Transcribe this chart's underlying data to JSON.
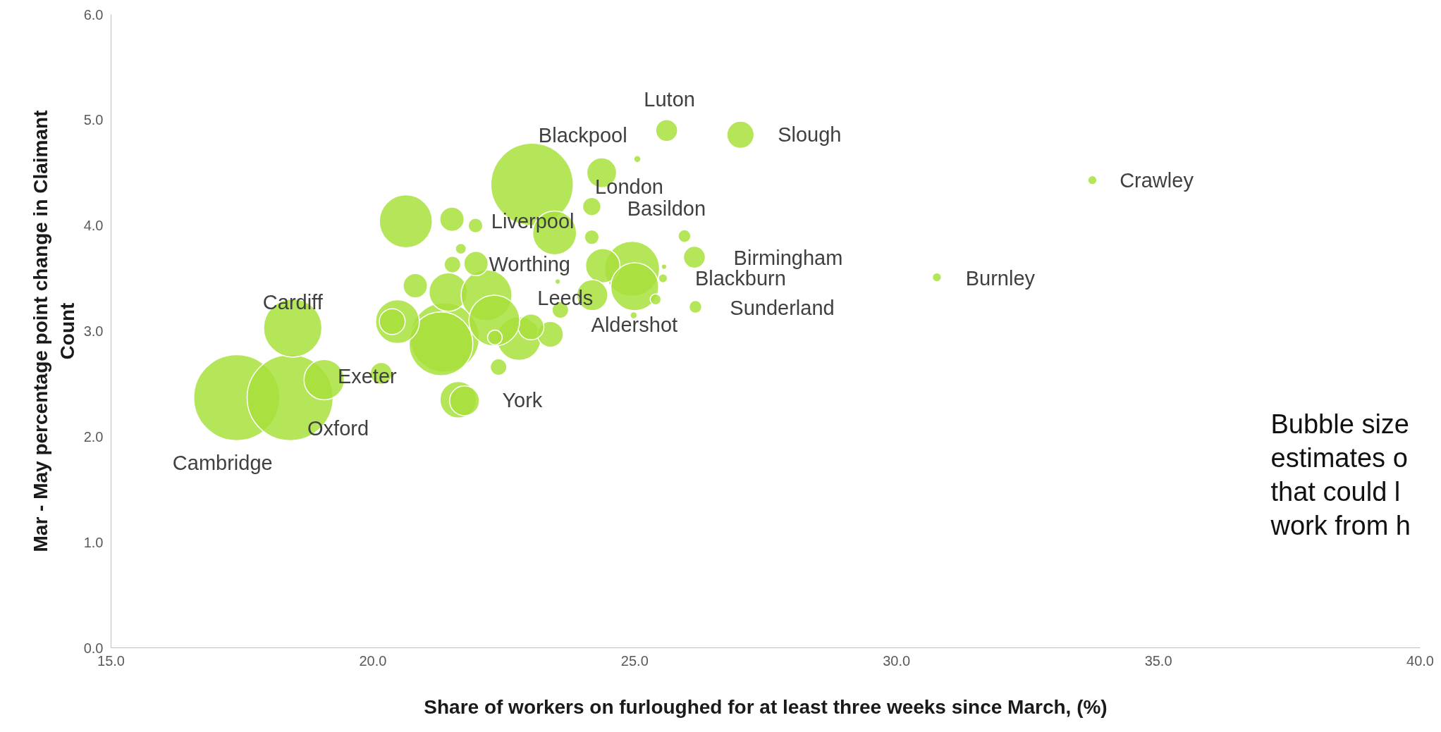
{
  "chart_data": {
    "type": "bubble",
    "xlabel": "Share of workers on furloughed for at least three weeks since March, (%)",
    "ylabel": "Mar - May percentage point change in Claimant\nCount",
    "xlim": [
      15,
      40
    ],
    "ylim": [
      0,
      6
    ],
    "xticks": [
      {
        "value": 15,
        "label": "15.0"
      },
      {
        "value": 20,
        "label": "20.0"
      },
      {
        "value": 25,
        "label": "25.0"
      },
      {
        "value": 30,
        "label": "30.0"
      },
      {
        "value": 35,
        "label": "35.0"
      },
      {
        "value": 40,
        "label": "40.0"
      }
    ],
    "yticks": [
      {
        "value": 0,
        "label": "0.0"
      },
      {
        "value": 1,
        "label": "1.0"
      },
      {
        "value": 2,
        "label": "2.0"
      },
      {
        "value": 3,
        "label": "3.0"
      },
      {
        "value": 4,
        "label": "4.0"
      },
      {
        "value": 5,
        "label": "5.0"
      },
      {
        "value": 6,
        "label": "6.0"
      }
    ],
    "grid": false,
    "series": [
      {
        "color": "#a8e03c",
        "x": [
          17.4,
          18.42,
          18.47,
          19.07,
          20.16,
          20.63,
          21.51,
          21.96,
          23.04,
          24.37,
          25.05,
          25.61,
          27.02,
          33.74,
          30.77,
          26.16,
          26.14,
          25.95,
          25.56,
          25.54,
          24.18,
          23.47,
          24.18,
          24.95,
          24.39,
          25.0,
          21.37,
          21.3,
          20.47,
          20.37,
          20.81,
          21.44,
          22.17,
          21.52,
          21.68,
          21.97,
          22.79,
          22.4,
          21.63,
          21.75,
          23.39,
          23.02,
          22.32,
          23.53,
          22.33,
          24.19,
          24.98,
          25.4,
          23.58
        ],
        "values": [
          2.37,
          2.37,
          3.03,
          2.54,
          2.6,
          4.04,
          4.06,
          4.0,
          4.39,
          4.5,
          4.63,
          4.9,
          4.86,
          4.43,
          3.51,
          3.23,
          3.7,
          3.9,
          3.61,
          3.5,
          4.18,
          3.93,
          3.89,
          3.59,
          3.62,
          3.42,
          2.94,
          2.88,
          3.09,
          3.09,
          3.43,
          3.37,
          3.34,
          3.63,
          3.78,
          3.64,
          2.93,
          2.66,
          2.35,
          2.34,
          2.97,
          3.04,
          3.1,
          3.47,
          2.94,
          3.34,
          3.15,
          3.3,
          3.2
        ],
        "sizes": [
          1,
          1,
          0.46,
          0.22,
          0.065,
          0.38,
          0.08,
          0.029,
          0.92,
          0.12,
          0.007,
          0.065,
          0.1,
          0.011,
          0.011,
          0.022,
          0.065,
          0.022,
          0.004,
          0.011,
          0.045,
          0.26,
          0.029,
          0.41,
          0.16,
          0.31,
          0.65,
          0.55,
          0.26,
          0.09,
          0.08,
          0.2,
          0.35,
          0.037,
          0.016,
          0.08,
          0.26,
          0.037,
          0.18,
          0.12,
          0.09,
          0.09,
          0.35,
          0.004,
          0.029,
          0.13,
          0.007,
          0.016,
          0.037
        ]
      }
    ],
    "annotations": [
      {
        "text": "Luton",
        "x": 25.61,
        "y": 4.9
      },
      {
        "text": "Blackpool",
        "x": 23.04,
        "y": 4.39
      },
      {
        "text": "Slough",
        "x": 27.02,
        "y": 4.86
      },
      {
        "text": "Crawley",
        "x": 33.74,
        "y": 4.43
      },
      {
        "text": "London",
        "x": 24.37,
        "y": 4.5
      },
      {
        "text": "Basildon",
        "x": 24.18,
        "y": 4.18
      },
      {
        "text": "Liverpool",
        "x": 23.47,
        "y": 3.93
      },
      {
        "text": "Birmingham",
        "x": 26.14,
        "y": 3.7
      },
      {
        "text": "Worthing",
        "x": 21.97,
        "y": 3.64
      },
      {
        "text": "Burnley",
        "x": 30.77,
        "y": 3.51
      },
      {
        "text": "Blackburn",
        "x": 25.54,
        "y": 3.5
      },
      {
        "text": "Leeds",
        "x": 23.58,
        "y": 3.2
      },
      {
        "text": "Sunderland",
        "x": 26.16,
        "y": 3.23
      },
      {
        "text": "Cardiff",
        "x": 18.47,
        "y": 3.03
      },
      {
        "text": "Aldershot",
        "x": 24.98,
        "y": 3.15
      },
      {
        "text": "Exeter",
        "x": 20.16,
        "y": 2.6
      },
      {
        "text": "York",
        "x": 21.75,
        "y": 2.34
      },
      {
        "text": "Oxford",
        "x": 18.42,
        "y": 2.37
      },
      {
        "text": "Cambridge",
        "x": 17.4,
        "y": 2.37
      },
      "Bubble size\nestimates o\nthat could l\nwork from h"
    ]
  }
}
